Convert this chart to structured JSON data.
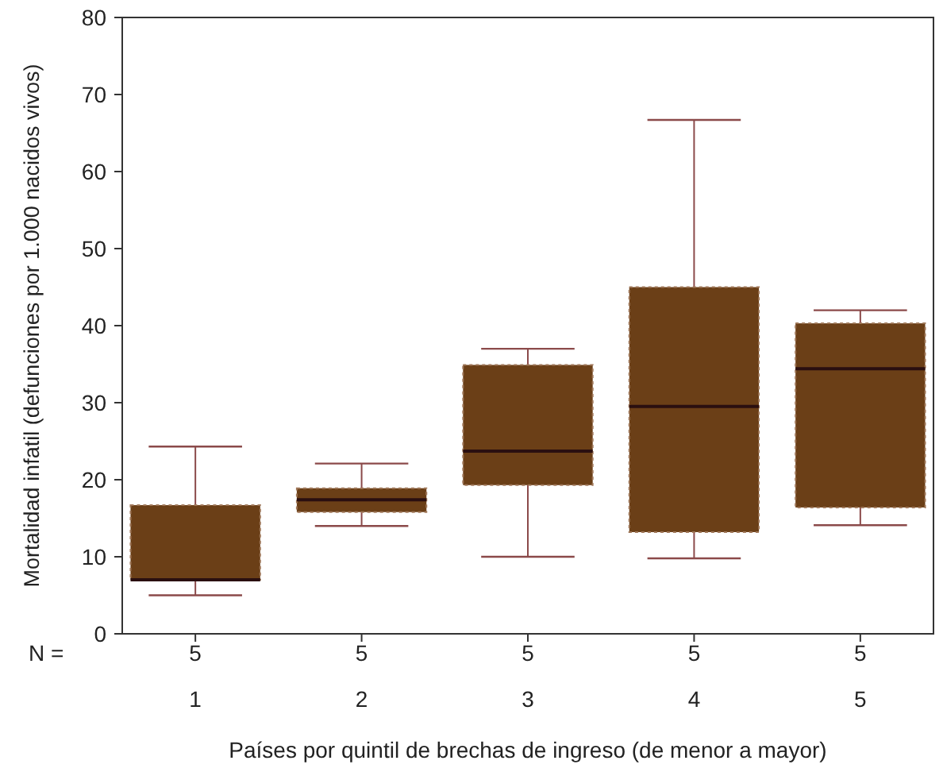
{
  "chart_data": {
    "type": "box",
    "xlabel": "Países por quintil de brechas de ingreso (de menor a mayor)",
    "ylabel": "Mortalidad infatil (defunciones por 1.000 nacidos vivos)",
    "categories": [
      "1",
      "2",
      "3",
      "4",
      "5"
    ],
    "series": [
      {
        "color": "#6b3f17",
        "boxes": [
          {
            "low": 5.0,
            "q1": 7.0,
            "median": 7.0,
            "q3": 16.7,
            "high": 24.3
          },
          {
            "low": 14.0,
            "q1": 15.8,
            "median": 17.4,
            "q3": 18.9,
            "high": 22.1
          },
          {
            "low": 10.0,
            "q1": 19.3,
            "median": 23.7,
            "q3": 34.9,
            "high": 37.0
          },
          {
            "low": 9.8,
            "q1": 13.2,
            "median": 29.5,
            "q3": 45.0,
            "high": 66.7
          },
          {
            "low": 14.1,
            "q1": 16.4,
            "median": 34.4,
            "q3": 40.3,
            "high": 42.0
          }
        ]
      }
    ],
    "ylim": [
      0,
      80
    ],
    "yticks": [
      0,
      10,
      20,
      30,
      40,
      50,
      60,
      70,
      80
    ],
    "annotations": [
      "N =",
      "5",
      "5",
      "5",
      "5",
      "5"
    ]
  }
}
